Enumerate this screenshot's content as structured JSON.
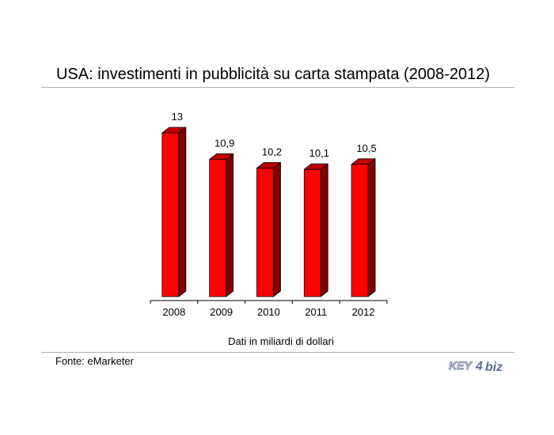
{
  "title": "USA: investimenti in pubblicità su carta stampata (2008-2012)",
  "unit_note": "Dati in miliardi di dollari",
  "source": "Fonte: eMarketer",
  "logo": {
    "part1": "KEY",
    "part2": "4",
    "part3": "biz"
  },
  "colors": {
    "bar_front": "#ff0000",
    "bar_side": "#800000",
    "bar_top": "#c00000",
    "axis": "#000000"
  },
  "chart_data": {
    "type": "bar",
    "categories": [
      "2008",
      "2009",
      "2010",
      "2011",
      "2012"
    ],
    "values": [
      13,
      10.9,
      10.2,
      10.1,
      10.5
    ],
    "data_labels": [
      "13",
      "10,9",
      "10,2",
      "10,1",
      "10,5"
    ],
    "title": "USA: investimenti in pubblicità su carta stampata (2008-2012)",
    "xlabel": "",
    "ylabel": "",
    "ylim": [
      0,
      13
    ],
    "grid": false,
    "legend": "none"
  }
}
